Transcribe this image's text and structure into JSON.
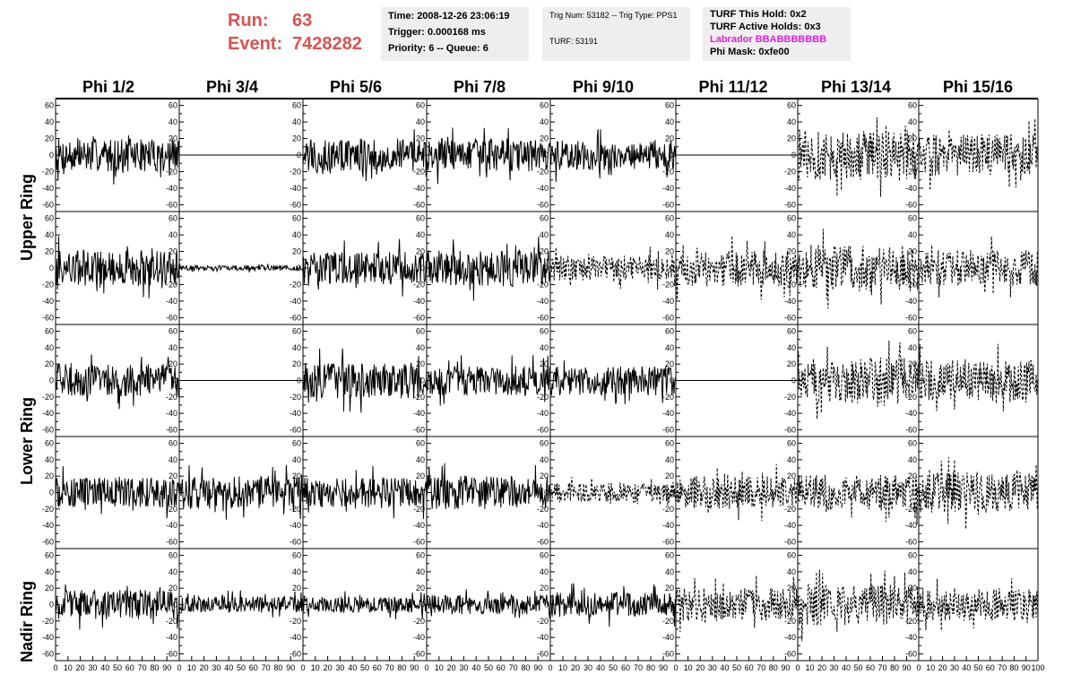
{
  "header": {
    "run_label": "Run:",
    "run_value": "63",
    "event_label": "Event:",
    "event_value": "7428282"
  },
  "info_box_1": {
    "time": "Time: 2008-12-26 23:06:19",
    "trigger": "Trigger: 0.000168 ms",
    "priority": "Priority: 6 -- Queue: 6"
  },
  "info_box_2": {
    "trig": "Trig Num: 53182 -- Trig Type: PPS1",
    "turf": "TURF: 53191"
  },
  "info_box_3": {
    "this_hold": "TURF This Hold: 0x2",
    "active_holds": "TURF Active Holds: 0x3",
    "labrador": "Labrador BBABBBBBBB",
    "phi_mask": "Phi Mask: 0xfe00"
  },
  "colors": {
    "run_text": "#d9534f",
    "labrador_text": "#e020e0",
    "info_bg": "#eeeeee",
    "trace": "#000000"
  },
  "columns": [
    "Phi 1/2",
    "Phi 3/4",
    "Phi 5/6",
    "Phi 7/8",
    "Phi 9/10",
    "Phi 11/12",
    "Phi 13/14",
    "Phi 15/16"
  ],
  "rows": [
    "Upper Ring",
    "Lower Ring",
    "Nadir Ring"
  ],
  "chart_data": {
    "type": "line",
    "title": "",
    "xlabel": "",
    "ylabel": "",
    "xlim": [
      0,
      100
    ],
    "ylim": [
      -65,
      65
    ],
    "x_ticks": [
      "0",
      "10",
      "20",
      "30",
      "40",
      "50",
      "60",
      "70",
      "80",
      "90",
      "100"
    ],
    "y_ticks": [
      "60",
      "40",
      "20",
      "0",
      "-20",
      "-40",
      "-60"
    ],
    "grid": false,
    "panel_rows": 5,
    "panel_cols": 8,
    "panels": [
      {
        "row": 0,
        "col": 0,
        "style": "solid",
        "amplitude": 20
      },
      {
        "row": 0,
        "col": 1,
        "style": "flat",
        "amplitude": 0
      },
      {
        "row": 0,
        "col": 2,
        "style": "solid",
        "amplitude": 20
      },
      {
        "row": 0,
        "col": 3,
        "style": "solid",
        "amplitude": 20
      },
      {
        "row": 0,
        "col": 4,
        "style": "solid",
        "amplitude": 18
      },
      {
        "row": 0,
        "col": 5,
        "style": "flat",
        "amplitude": 0
      },
      {
        "row": 0,
        "col": 6,
        "style": "dashed",
        "amplitude": 30
      },
      {
        "row": 0,
        "col": 7,
        "style": "dashed",
        "amplitude": 25
      },
      {
        "row": 1,
        "col": 0,
        "style": "solid",
        "amplitude": 22
      },
      {
        "row": 1,
        "col": 1,
        "style": "solid",
        "amplitude": 3
      },
      {
        "row": 1,
        "col": 2,
        "style": "solid",
        "amplitude": 20
      },
      {
        "row": 1,
        "col": 3,
        "style": "solid",
        "amplitude": 22
      },
      {
        "row": 1,
        "col": 4,
        "style": "dashed",
        "amplitude": 15
      },
      {
        "row": 1,
        "col": 5,
        "style": "dashed",
        "amplitude": 22
      },
      {
        "row": 1,
        "col": 6,
        "style": "dashed",
        "amplitude": 28
      },
      {
        "row": 1,
        "col": 7,
        "style": "dashed",
        "amplitude": 22
      },
      {
        "row": 2,
        "col": 0,
        "style": "solid",
        "amplitude": 20
      },
      {
        "row": 2,
        "col": 1,
        "style": "flat",
        "amplitude": 0
      },
      {
        "row": 2,
        "col": 2,
        "style": "solid",
        "amplitude": 22
      },
      {
        "row": 2,
        "col": 3,
        "style": "solid",
        "amplitude": 18
      },
      {
        "row": 2,
        "col": 4,
        "style": "solid",
        "amplitude": 18
      },
      {
        "row": 2,
        "col": 5,
        "style": "flat",
        "amplitude": 0
      },
      {
        "row": 2,
        "col": 6,
        "style": "dashed",
        "amplitude": 28
      },
      {
        "row": 2,
        "col": 7,
        "style": "dashed",
        "amplitude": 25
      },
      {
        "row": 3,
        "col": 0,
        "style": "solid",
        "amplitude": 18
      },
      {
        "row": 3,
        "col": 1,
        "style": "solid",
        "amplitude": 20
      },
      {
        "row": 3,
        "col": 2,
        "style": "solid",
        "amplitude": 18
      },
      {
        "row": 3,
        "col": 3,
        "style": "solid",
        "amplitude": 20
      },
      {
        "row": 3,
        "col": 4,
        "style": "dashed",
        "amplitude": 12
      },
      {
        "row": 3,
        "col": 5,
        "style": "dashed",
        "amplitude": 20
      },
      {
        "row": 3,
        "col": 6,
        "style": "dashed",
        "amplitude": 22
      },
      {
        "row": 3,
        "col": 7,
        "style": "dashed",
        "amplitude": 25
      },
      {
        "row": 4,
        "col": 0,
        "style": "solid",
        "amplitude": 18
      },
      {
        "row": 4,
        "col": 1,
        "style": "solid",
        "amplitude": 10
      },
      {
        "row": 4,
        "col": 2,
        "style": "solid",
        "amplitude": 10
      },
      {
        "row": 4,
        "col": 3,
        "style": "solid",
        "amplitude": 12
      },
      {
        "row": 4,
        "col": 4,
        "style": "solid",
        "amplitude": 15
      },
      {
        "row": 4,
        "col": 5,
        "style": "dashed",
        "amplitude": 20
      },
      {
        "row": 4,
        "col": 6,
        "style": "dashed",
        "amplitude": 25
      },
      {
        "row": 4,
        "col": 7,
        "style": "dashed",
        "amplitude": 20
      }
    ]
  }
}
